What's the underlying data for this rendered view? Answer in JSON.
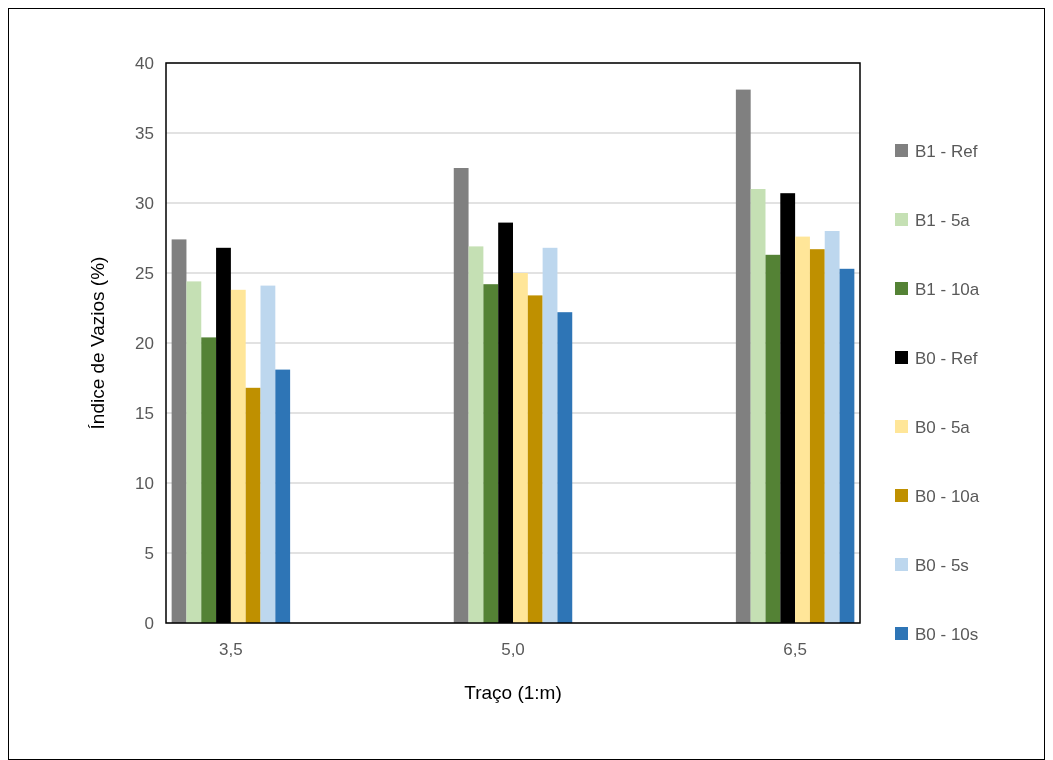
{
  "chart_data": {
    "type": "bar",
    "xlabel": "Traço (1:m)",
    "ylabel": "Índice de Vazios (%)",
    "categories": [
      "3,5",
      "5,0",
      "6,5"
    ],
    "series": [
      {
        "name": "B1 - Ref",
        "color": "#808080",
        "values": [
          27.4,
          32.5,
          38.1
        ]
      },
      {
        "name": "B1 - 5a",
        "color": "#c5e0b4",
        "values": [
          24.4,
          26.9,
          31.0
        ]
      },
      {
        "name": "B1 - 10a",
        "color": "#548235",
        "values": [
          20.4,
          24.2,
          26.3
        ]
      },
      {
        "name": "B0 - Ref",
        "color": "#000000",
        "values": [
          26.8,
          28.6,
          30.7
        ]
      },
      {
        "name": "B0 - 5a",
        "color": "#ffe699",
        "values": [
          23.8,
          25.0,
          27.6
        ]
      },
      {
        "name": "B0 - 10a",
        "color": "#bf9000",
        "values": [
          16.8,
          23.4,
          26.7
        ]
      },
      {
        "name": "B0 - 5s",
        "color": "#bdd7ee",
        "values": [
          24.1,
          26.8,
          28.0
        ]
      },
      {
        "name": "B0 - 10s",
        "color": "#2e75b6",
        "values": [
          18.1,
          22.2,
          25.3
        ]
      }
    ],
    "ylim": [
      0,
      40
    ],
    "yticks": [
      0,
      5,
      10,
      15,
      20,
      25,
      30,
      35,
      40
    ],
    "grid": "y",
    "legend": "right"
  }
}
